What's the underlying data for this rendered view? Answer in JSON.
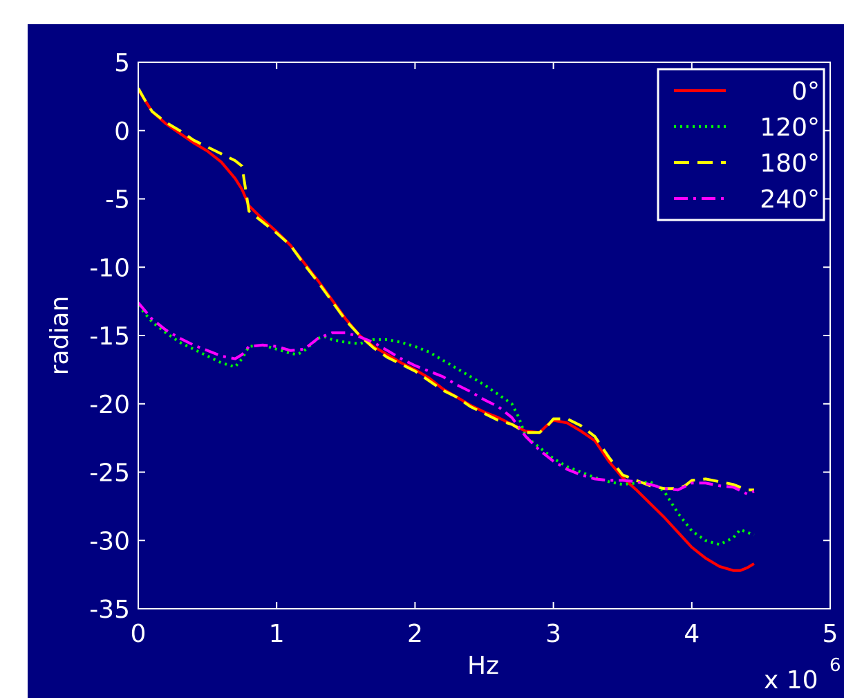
{
  "colors": {
    "background": "#000080",
    "axes": "#ffffff",
    "text": "#ffffff",
    "page": "#ffffff"
  },
  "chart_data": {
    "type": "line",
    "title": "",
    "xlabel": "Hz",
    "ylabel": "radian",
    "x_multiplier_label": "x 10",
    "x_multiplier_exponent": "6",
    "xlim": [
      0,
      5
    ],
    "ylim": [
      -35,
      5
    ],
    "xticks": [
      0,
      1,
      2,
      3,
      4,
      5
    ],
    "yticks": [
      5,
      0,
      -5,
      -10,
      -15,
      -20,
      -25,
      -30,
      -35
    ],
    "xtick_labels": [
      "0",
      "1",
      "2",
      "3",
      "4",
      "5"
    ],
    "ytick_labels": [
      "5",
      "0",
      "-5",
      "-10",
      "-15",
      "-20",
      "-25",
      "-30",
      "-35"
    ],
    "grid": false,
    "legend_position": "top-right",
    "series": [
      {
        "name": "0°",
        "color": "#ff0000",
        "dash": "solid",
        "points": [
          [
            0,
            3.0
          ],
          [
            0.05,
            2.2
          ],
          [
            0.1,
            1.4
          ],
          [
            0.2,
            0.5
          ],
          [
            0.3,
            -0.2
          ],
          [
            0.4,
            -0.9
          ],
          [
            0.5,
            -1.5
          ],
          [
            0.6,
            -2.3
          ],
          [
            0.7,
            -3.5
          ],
          [
            0.75,
            -4.3
          ],
          [
            0.8,
            -5.5
          ],
          [
            0.9,
            -6.5
          ],
          [
            1.0,
            -7.4
          ],
          [
            1.1,
            -8.4
          ],
          [
            1.2,
            -9.7
          ],
          [
            1.3,
            -11.0
          ],
          [
            1.4,
            -12.4
          ],
          [
            1.5,
            -13.8
          ],
          [
            1.6,
            -15.0
          ],
          [
            1.7,
            -15.8
          ],
          [
            1.8,
            -16.4
          ],
          [
            1.9,
            -17.0
          ],
          [
            2.0,
            -17.5
          ],
          [
            2.1,
            -18.1
          ],
          [
            2.2,
            -18.9
          ],
          [
            2.3,
            -19.5
          ],
          [
            2.4,
            -20.1
          ],
          [
            2.5,
            -20.6
          ],
          [
            2.6,
            -21.0
          ],
          [
            2.7,
            -21.5
          ],
          [
            2.8,
            -22.0
          ],
          [
            2.9,
            -22.1
          ],
          [
            2.95,
            -21.6
          ],
          [
            3.0,
            -21.2
          ],
          [
            3.1,
            -21.4
          ],
          [
            3.2,
            -22.0
          ],
          [
            3.3,
            -22.7
          ],
          [
            3.4,
            -24.2
          ],
          [
            3.5,
            -25.4
          ],
          [
            3.6,
            -26.3
          ],
          [
            3.7,
            -27.3
          ],
          [
            3.8,
            -28.3
          ],
          [
            3.9,
            -29.4
          ],
          [
            4.0,
            -30.5
          ],
          [
            4.1,
            -31.3
          ],
          [
            4.2,
            -31.9
          ],
          [
            4.3,
            -32.2
          ],
          [
            4.35,
            -32.2
          ],
          [
            4.4,
            -32.0
          ],
          [
            4.45,
            -31.7
          ]
        ]
      },
      {
        "name": "120°",
        "color": "#00ff00",
        "dash": "dotted",
        "points": [
          [
            0,
            -12.8
          ],
          [
            0.1,
            -14.0
          ],
          [
            0.2,
            -14.8
          ],
          [
            0.3,
            -15.5
          ],
          [
            0.4,
            -16.0
          ],
          [
            0.5,
            -16.5
          ],
          [
            0.6,
            -17.0
          ],
          [
            0.7,
            -17.3
          ],
          [
            0.75,
            -16.7
          ],
          [
            0.8,
            -15.8
          ],
          [
            0.9,
            -15.7
          ],
          [
            1.0,
            -16.0
          ],
          [
            1.1,
            -16.3
          ],
          [
            1.15,
            -16.4
          ],
          [
            1.2,
            -16.1
          ],
          [
            1.3,
            -15.2
          ],
          [
            1.35,
            -15.1
          ],
          [
            1.4,
            -15.3
          ],
          [
            1.5,
            -15.5
          ],
          [
            1.6,
            -15.6
          ],
          [
            1.7,
            -15.3
          ],
          [
            1.8,
            -15.3
          ],
          [
            1.9,
            -15.5
          ],
          [
            2.0,
            -15.8
          ],
          [
            2.1,
            -16.2
          ],
          [
            2.2,
            -16.8
          ],
          [
            2.3,
            -17.4
          ],
          [
            2.4,
            -18.0
          ],
          [
            2.5,
            -18.6
          ],
          [
            2.6,
            -19.3
          ],
          [
            2.7,
            -20.0
          ],
          [
            2.75,
            -21.0
          ],
          [
            2.8,
            -22.4
          ],
          [
            2.9,
            -23.2
          ],
          [
            3.0,
            -24.0
          ],
          [
            3.1,
            -24.6
          ],
          [
            3.2,
            -25.0
          ],
          [
            3.3,
            -25.4
          ],
          [
            3.4,
            -25.7
          ],
          [
            3.5,
            -25.9
          ],
          [
            3.6,
            -25.8
          ],
          [
            3.7,
            -25.7
          ],
          [
            3.8,
            -26.4
          ],
          [
            3.9,
            -28.0
          ],
          [
            4.0,
            -29.3
          ],
          [
            4.1,
            -30.0
          ],
          [
            4.2,
            -30.3
          ],
          [
            4.3,
            -29.8
          ],
          [
            4.35,
            -29.2
          ],
          [
            4.45,
            -29.6
          ]
        ]
      },
      {
        "name": "180°",
        "color": "#ffff00",
        "dash": "dashed",
        "points": [
          [
            0,
            3.1
          ],
          [
            0.05,
            2.2
          ],
          [
            0.1,
            1.4
          ],
          [
            0.2,
            0.6
          ],
          [
            0.3,
            0.0
          ],
          [
            0.4,
            -0.7
          ],
          [
            0.5,
            -1.2
          ],
          [
            0.6,
            -1.7
          ],
          [
            0.7,
            -2.2
          ],
          [
            0.75,
            -2.6
          ],
          [
            0.8,
            -5.9
          ],
          [
            0.9,
            -6.7
          ],
          [
            1.0,
            -7.5
          ],
          [
            1.1,
            -8.4
          ],
          [
            1.2,
            -9.8
          ],
          [
            1.3,
            -11.1
          ],
          [
            1.4,
            -12.5
          ],
          [
            1.5,
            -13.9
          ],
          [
            1.6,
            -15.0
          ],
          [
            1.7,
            -15.9
          ],
          [
            1.8,
            -16.6
          ],
          [
            1.9,
            -17.1
          ],
          [
            2.0,
            -17.6
          ],
          [
            2.1,
            -18.3
          ],
          [
            2.2,
            -19.0
          ],
          [
            2.3,
            -19.5
          ],
          [
            2.4,
            -20.2
          ],
          [
            2.5,
            -20.7
          ],
          [
            2.6,
            -21.2
          ],
          [
            2.7,
            -21.5
          ],
          [
            2.8,
            -22.1
          ],
          [
            2.9,
            -22.1
          ],
          [
            2.95,
            -21.7
          ],
          [
            3.0,
            -21.1
          ],
          [
            3.1,
            -21.1
          ],
          [
            3.2,
            -21.6
          ],
          [
            3.3,
            -22.4
          ],
          [
            3.4,
            -23.9
          ],
          [
            3.5,
            -25.2
          ],
          [
            3.6,
            -25.6
          ],
          [
            3.7,
            -26.0
          ],
          [
            3.8,
            -26.2
          ],
          [
            3.9,
            -26.2
          ],
          [
            3.95,
            -26.0
          ],
          [
            4.0,
            -25.6
          ],
          [
            4.1,
            -25.5
          ],
          [
            4.2,
            -25.7
          ],
          [
            4.3,
            -25.9
          ],
          [
            4.4,
            -26.3
          ],
          [
            4.45,
            -26.3
          ]
        ]
      },
      {
        "name": "240°",
        "color": "#ff00ff",
        "dash": "dashdot",
        "points": [
          [
            0,
            -12.6
          ],
          [
            0.1,
            -13.8
          ],
          [
            0.2,
            -14.6
          ],
          [
            0.3,
            -15.2
          ],
          [
            0.4,
            -15.7
          ],
          [
            0.5,
            -16.1
          ],
          [
            0.6,
            -16.5
          ],
          [
            0.7,
            -16.7
          ],
          [
            0.75,
            -16.4
          ],
          [
            0.8,
            -15.8
          ],
          [
            0.9,
            -15.7
          ],
          [
            1.0,
            -15.8
          ],
          [
            1.1,
            -16.1
          ],
          [
            1.2,
            -16.0
          ],
          [
            1.3,
            -15.2
          ],
          [
            1.4,
            -14.8
          ],
          [
            1.5,
            -14.8
          ],
          [
            1.6,
            -15.1
          ],
          [
            1.7,
            -15.5
          ],
          [
            1.8,
            -16.1
          ],
          [
            1.9,
            -16.7
          ],
          [
            2.0,
            -17.2
          ],
          [
            2.1,
            -17.6
          ],
          [
            2.2,
            -18.0
          ],
          [
            2.3,
            -18.6
          ],
          [
            2.4,
            -19.1
          ],
          [
            2.5,
            -19.7
          ],
          [
            2.6,
            -20.2
          ],
          [
            2.7,
            -21.0
          ],
          [
            2.8,
            -22.4
          ],
          [
            2.9,
            -23.4
          ],
          [
            3.0,
            -24.2
          ],
          [
            3.1,
            -24.8
          ],
          [
            3.2,
            -25.2
          ],
          [
            3.3,
            -25.5
          ],
          [
            3.4,
            -25.6
          ],
          [
            3.5,
            -25.6
          ],
          [
            3.6,
            -25.7
          ],
          [
            3.7,
            -25.9
          ],
          [
            3.8,
            -26.2
          ],
          [
            3.9,
            -26.3
          ],
          [
            4.0,
            -25.8
          ],
          [
            4.1,
            -25.8
          ],
          [
            4.2,
            -26.0
          ],
          [
            4.3,
            -26.1
          ],
          [
            4.4,
            -26.6
          ],
          [
            4.45,
            -26.4
          ]
        ]
      }
    ]
  }
}
